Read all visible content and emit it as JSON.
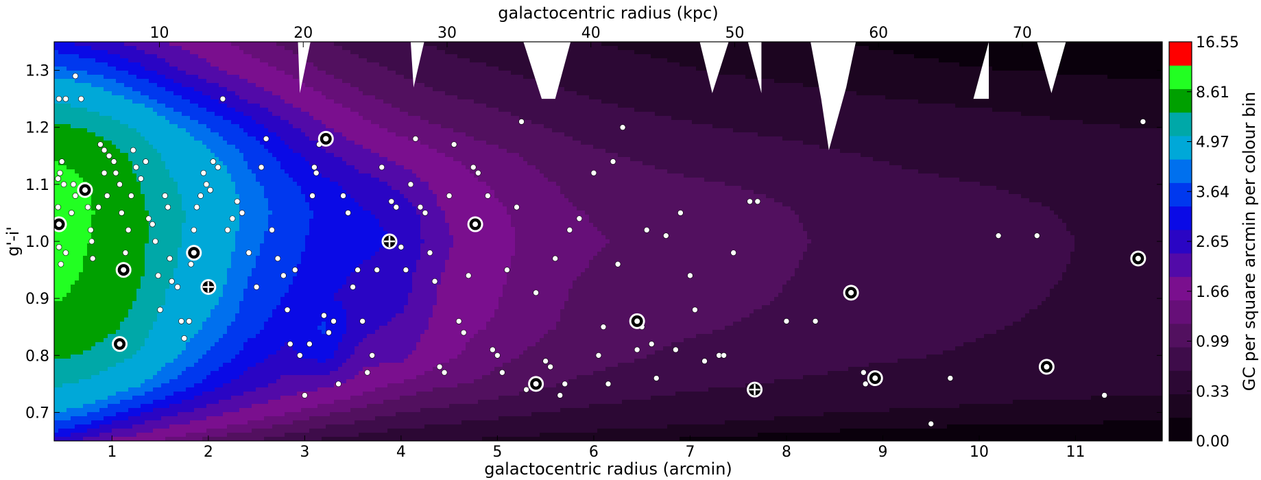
{
  "chart_data": {
    "type": "heatmap",
    "xlabel": "galactocentric radius (arcmin)",
    "x2label": "galactocentric radius (kpc)",
    "ylabel": "g'-i'",
    "colorbar_label": "GC per square arcmin per colour bin",
    "xlim": [
      0.4,
      11.9
    ],
    "ylim": [
      0.65,
      1.35
    ],
    "x_ticks": [
      "1",
      "2",
      "3",
      "4",
      "5",
      "6",
      "7",
      "8",
      "9",
      "10",
      "11"
    ],
    "x2_ticks": [
      "10",
      "20",
      "30",
      "40",
      "50",
      "60",
      "70"
    ],
    "y_ticks": [
      "0.7",
      "0.8",
      "0.9",
      "1.0",
      "1.1",
      "1.2",
      "1.3"
    ],
    "colorbar_ticks": [
      "0.00",
      "0.33",
      "0.99",
      "1.66",
      "2.65",
      "3.64",
      "4.97",
      "8.61",
      "16.55"
    ],
    "levels": [
      0,
      0.17,
      0.33,
      0.66,
      0.99,
      1.33,
      1.66,
      2.16,
      2.65,
      3.15,
      3.64,
      4.31,
      4.97,
      6.79,
      8.61,
      12.58,
      16.55
    ],
    "level_colors": [
      "#0a000c",
      "#1c0520",
      "#2c0834",
      "#3e0c4a",
      "#52105f",
      "#660f78",
      "#7a0f8e",
      "#520aa8",
      "#2a05c4",
      "#0a0ae6",
      "#0038ee",
      "#0070ee",
      "#00a8d8",
      "#00a8a8",
      "#00a000",
      "#22ff22",
      "#ff0000"
    ],
    "density_grid": {
      "x": [
        0.4,
        0.7,
        1.0,
        1.3,
        1.6,
        2.0,
        2.4,
        2.8,
        3.2,
        3.6,
        4.0,
        4.4,
        4.8,
        5.3,
        5.8,
        6.3,
        6.8,
        7.3,
        7.8,
        8.3,
        8.8,
        9.3,
        9.8,
        10.3,
        10.8,
        11.3,
        11.9
      ],
      "y": [
        0.65,
        0.7,
        0.75,
        0.8,
        0.85,
        0.9,
        0.95,
        1.0,
        1.05,
        1.1,
        1.15,
        1.2,
        1.25,
        1.3,
        1.35
      ],
      "z": [
        [
          3,
          2.5,
          2,
          1.8,
          1.5,
          1.2,
          1,
          0.8,
          0.6,
          0.5,
          0.4,
          0.35,
          0.3,
          0.25,
          0.2,
          0.18,
          0.15,
          0.12,
          0.1,
          0.08,
          0.07,
          0.06,
          0.05,
          0.05,
          0.04,
          0.04,
          0.03
        ],
        [
          5,
          4.5,
          3.8,
          3.2,
          2.8,
          2.4,
          2,
          1.7,
          1.4,
          1.2,
          1,
          0.9,
          0.8,
          0.7,
          0.6,
          0.55,
          0.5,
          0.45,
          0.4,
          0.35,
          0.33,
          0.3,
          0.28,
          0.26,
          0.25,
          0.24,
          0.22
        ],
        [
          7,
          6.5,
          5.8,
          5,
          4.2,
          3.4,
          2.9,
          2.5,
          2.3,
          1.9,
          1.6,
          1.4,
          1.3,
          1.1,
          0.95,
          0.85,
          0.75,
          0.7,
          0.65,
          0.6,
          0.55,
          0.5,
          0.5,
          0.45,
          0.45,
          0.4,
          0.4
        ],
        [
          9,
          8.5,
          7.5,
          6.5,
          5.2,
          4.2,
          3.4,
          3,
          3.4,
          2.4,
          2.3,
          1.8,
          1.5,
          1.3,
          1.15,
          1.05,
          0.95,
          0.9,
          0.85,
          0.8,
          0.72,
          0.68,
          0.64,
          0.6,
          0.58,
          0.55,
          0.5
        ],
        [
          11,
          10,
          9,
          7.5,
          5.8,
          4.8,
          3.9,
          3.3,
          3.7,
          2.8,
          2.5,
          2,
          1.7,
          1.45,
          1.25,
          1.15,
          1.05,
          1,
          0.95,
          0.88,
          0.8,
          0.75,
          0.7,
          0.66,
          0.62,
          0.58,
          0.55
        ],
        [
          13,
          11.5,
          10,
          8.3,
          6.5,
          5.3,
          4.2,
          3.6,
          3.2,
          3,
          2.8,
          2.1,
          1.8,
          1.5,
          1.3,
          1.2,
          1.1,
          1.05,
          1,
          0.92,
          0.85,
          0.8,
          0.74,
          0.7,
          0.65,
          0.6,
          0.56
        ],
        [
          14.5,
          12.5,
          10.5,
          8.8,
          7,
          5.6,
          4.4,
          3.8,
          3.3,
          3.1,
          2.9,
          2.2,
          1.85,
          1.55,
          1.35,
          1.25,
          1.15,
          1.1,
          1.05,
          0.95,
          0.88,
          0.82,
          0.76,
          0.72,
          0.67,
          0.62,
          0.58
        ],
        [
          15.5,
          13,
          11,
          9,
          7.2,
          5.8,
          4.6,
          3.9,
          3.4,
          3.3,
          3.1,
          2.3,
          1.9,
          1.6,
          1.4,
          1.3,
          1.2,
          1.15,
          1.08,
          0.98,
          0.9,
          0.84,
          0.78,
          0.74,
          0.68,
          0.63,
          0.6
        ],
        [
          16,
          13.5,
          11,
          9,
          7.3,
          6,
          4.8,
          4,
          3.5,
          3.2,
          3,
          2.2,
          1.85,
          1.55,
          1.35,
          1.25,
          1.15,
          1.1,
          1.05,
          0.95,
          0.88,
          0.82,
          0.76,
          0.72,
          0.66,
          0.62,
          0.58
        ],
        [
          15,
          13,
          10.5,
          8.5,
          7,
          5.8,
          4.6,
          3.8,
          3.3,
          2.9,
          2.5,
          2,
          1.7,
          1.45,
          1.25,
          1.15,
          1.05,
          1,
          0.95,
          0.85,
          0.78,
          0.72,
          0.68,
          0.64,
          0.6,
          0.56,
          0.52
        ],
        [
          12,
          11,
          9.5,
          7.8,
          6.3,
          5.2,
          4.2,
          3.4,
          2.8,
          2.3,
          2,
          1.7,
          1.5,
          1.3,
          1.1,
          0.98,
          0.9,
          0.85,
          0.8,
          0.72,
          0.66,
          0.6,
          0.56,
          0.52,
          0.48,
          0.45,
          0.42
        ],
        [
          9,
          8.5,
          7.5,
          6.5,
          5.2,
          4.3,
          3.5,
          2.8,
          2.2,
          1.8,
          1.5,
          1.35,
          1.2,
          1.05,
          0.9,
          0.8,
          0.72,
          0.66,
          0.6,
          0.55,
          0.5,
          0.46,
          0.42,
          0.39,
          0.36,
          0.34,
          0.32
        ],
        [
          6.5,
          6,
          5.3,
          4.6,
          3.9,
          3.2,
          2.6,
          2.1,
          1.7,
          1.4,
          1.2,
          1.05,
          0.95,
          0.82,
          0.7,
          0.6,
          0.54,
          0.48,
          0.43,
          0.39,
          0.35,
          0.32,
          0.3,
          0.28,
          0.26,
          0.24,
          0.22
        ],
        [
          4.5,
          4.2,
          3.8,
          3.3,
          2.8,
          2.3,
          1.9,
          1.6,
          1.3,
          1.1,
          0.95,
          0.82,
          0.72,
          0.6,
          0.5,
          0.42,
          0.36,
          0.31,
          0.28,
          0.25,
          0.22,
          0.2,
          0.18,
          0.17,
          0.16,
          0.15,
          0.14
        ],
        [
          3.2,
          3,
          2.7,
          2.4,
          2.1,
          1.8,
          1.5,
          1.25,
          1,
          0.85,
          0.72,
          0.6,
          0.5,
          0.42,
          0.35,
          0.3,
          0.26,
          0.22,
          0.2,
          0.18,
          0.16,
          0.14,
          0.13,
          0.12,
          0.11,
          0.1,
          0.1
        ]
      ]
    },
    "gc_points": [
      [
        0.45,
        1.25
      ],
      [
        0.52,
        1.25
      ],
      [
        0.62,
        1.29
      ],
      [
        0.68,
        1.25
      ],
      [
        0.48,
        1.14
      ],
      [
        0.46,
        1.12
      ],
      [
        0.44,
        1.11
      ],
      [
        0.5,
        1.1
      ],
      [
        0.44,
        1.06
      ],
      [
        0.5,
        1.03
      ],
      [
        0.47,
        0.96
      ],
      [
        0.45,
        0.99
      ],
      [
        0.52,
        0.98
      ],
      [
        0.58,
        1.05
      ],
      [
        0.6,
        1.1
      ],
      [
        0.62,
        1.08
      ],
      [
        0.72,
        1.09
      ],
      [
        0.75,
        1.06
      ],
      [
        0.79,
        1.0
      ],
      [
        0.78,
        1.02
      ],
      [
        0.8,
        0.97
      ],
      [
        0.86,
        1.06
      ],
      [
        0.88,
        1.17
      ],
      [
        0.92,
        1.16
      ],
      [
        0.92,
        1.12
      ],
      [
        0.95,
        1.08
      ],
      [
        0.97,
        1.15
      ],
      [
        1.02,
        1.14
      ],
      [
        1.04,
        1.12
      ],
      [
        1.08,
        1.1
      ],
      [
        1.1,
        1.05
      ],
      [
        1.14,
        0.98
      ],
      [
        1.17,
        1.02
      ],
      [
        1.2,
        1.08
      ],
      [
        1.22,
        1.16
      ],
      [
        1.25,
        1.13
      ],
      [
        1.3,
        1.11
      ],
      [
        1.35,
        1.14
      ],
      [
        1.38,
        1.04
      ],
      [
        1.42,
        1.03
      ],
      [
        1.45,
        1.0
      ],
      [
        1.48,
        0.94
      ],
      [
        1.5,
        0.88
      ],
      [
        1.55,
        1.08
      ],
      [
        1.58,
        1.06
      ],
      [
        1.6,
        0.97
      ],
      [
        1.62,
        0.93
      ],
      [
        1.68,
        0.92
      ],
      [
        1.72,
        0.86
      ],
      [
        1.75,
        0.83
      ],
      [
        1.8,
        0.86
      ],
      [
        1.82,
        0.96
      ],
      [
        1.85,
        1.02
      ],
      [
        1.88,
        1.06
      ],
      [
        1.92,
        1.08
      ],
      [
        1.95,
        1.12
      ],
      [
        1.98,
        1.1
      ],
      [
        2.02,
        1.09
      ],
      [
        2.05,
        1.14
      ],
      [
        2.1,
        1.13
      ],
      [
        2.15,
        1.25
      ],
      [
        2.2,
        1.02
      ],
      [
        2.25,
        1.04
      ],
      [
        2.3,
        1.07
      ],
      [
        2.35,
        1.05
      ],
      [
        2.42,
        0.98
      ],
      [
        2.5,
        0.92
      ],
      [
        2.55,
        1.13
      ],
      [
        2.6,
        1.18
      ],
      [
        2.66,
        1.02
      ],
      [
        2.72,
        0.97
      ],
      [
        2.78,
        0.94
      ],
      [
        2.82,
        0.88
      ],
      [
        2.85,
        0.82
      ],
      [
        2.9,
        0.95
      ],
      [
        2.95,
        0.8
      ],
      [
        3.0,
        0.73
      ],
      [
        3.05,
        0.82
      ],
      [
        3.08,
        1.08
      ],
      [
        3.1,
        1.13
      ],
      [
        3.12,
        1.12
      ],
      [
        3.15,
        1.17
      ],
      [
        3.2,
        0.87
      ],
      [
        3.25,
        0.84
      ],
      [
        3.3,
        0.86
      ],
      [
        3.35,
        0.75
      ],
      [
        3.4,
        1.08
      ],
      [
        3.45,
        1.05
      ],
      [
        3.5,
        0.92
      ],
      [
        3.55,
        0.95
      ],
      [
        3.6,
        0.86
      ],
      [
        3.65,
        0.77
      ],
      [
        3.7,
        0.8
      ],
      [
        3.75,
        0.95
      ],
      [
        3.8,
        1.13
      ],
      [
        3.9,
        1.07
      ],
      [
        3.95,
        1.06
      ],
      [
        4.0,
        0.99
      ],
      [
        4.05,
        0.95
      ],
      [
        4.1,
        1.1
      ],
      [
        4.15,
        1.18
      ],
      [
        4.2,
        1.06
      ],
      [
        4.25,
        1.05
      ],
      [
        4.3,
        0.98
      ],
      [
        4.35,
        0.93
      ],
      [
        4.4,
        0.78
      ],
      [
        4.45,
        0.77
      ],
      [
        4.5,
        1.08
      ],
      [
        4.55,
        1.17
      ],
      [
        4.6,
        0.86
      ],
      [
        4.65,
        0.84
      ],
      [
        4.7,
        0.94
      ],
      [
        4.75,
        1.13
      ],
      [
        4.8,
        1.12
      ],
      [
        4.9,
        1.08
      ],
      [
        4.95,
        0.81
      ],
      [
        5.0,
        0.8
      ],
      [
        5.05,
        0.77
      ],
      [
        5.1,
        0.95
      ],
      [
        5.2,
        1.06
      ],
      [
        5.25,
        1.21
      ],
      [
        5.3,
        0.74
      ],
      [
        5.4,
        0.91
      ],
      [
        5.45,
        0.75
      ],
      [
        5.5,
        0.79
      ],
      [
        5.55,
        0.78
      ],
      [
        5.6,
        0.97
      ],
      [
        5.65,
        0.73
      ],
      [
        5.7,
        0.75
      ],
      [
        5.75,
        1.02
      ],
      [
        5.85,
        1.04
      ],
      [
        6.0,
        1.12
      ],
      [
        6.05,
        0.8
      ],
      [
        6.1,
        0.85
      ],
      [
        6.15,
        0.75
      ],
      [
        6.2,
        1.14
      ],
      [
        6.25,
        0.96
      ],
      [
        6.3,
        1.2
      ],
      [
        6.45,
        0.81
      ],
      [
        6.5,
        0.85
      ],
      [
        6.55,
        1.02
      ],
      [
        6.6,
        0.82
      ],
      [
        6.65,
        0.76
      ],
      [
        6.75,
        1.01
      ],
      [
        6.85,
        0.81
      ],
      [
        6.9,
        1.05
      ],
      [
        7.0,
        0.94
      ],
      [
        7.05,
        0.88
      ],
      [
        7.15,
        0.79
      ],
      [
        7.3,
        0.8
      ],
      [
        7.35,
        0.8
      ],
      [
        7.45,
        0.98
      ],
      [
        7.62,
        1.07
      ],
      [
        7.7,
        1.07
      ],
      [
        8.0,
        0.86
      ],
      [
        8.3,
        0.86
      ],
      [
        8.8,
        0.77
      ],
      [
        8.82,
        0.75
      ],
      [
        9.5,
        0.68
      ],
      [
        9.7,
        0.76
      ],
      [
        10.2,
        1.01
      ],
      [
        10.6,
        1.01
      ],
      [
        10.75,
        0.78
      ],
      [
        11.3,
        0.73
      ],
      [
        11.7,
        1.21
      ]
    ],
    "gc_circled": [
      [
        0.45,
        1.03
      ],
      [
        0.72,
        1.09
      ],
      [
        1.12,
        0.95
      ],
      [
        1.08,
        0.82
      ],
      [
        1.85,
        0.98
      ],
      [
        3.22,
        1.18
      ],
      [
        4.77,
        1.03
      ],
      [
        5.4,
        0.75
      ],
      [
        6.45,
        0.86
      ],
      [
        8.67,
        0.91
      ],
      [
        8.92,
        0.76
      ],
      [
        10.7,
        0.78
      ],
      [
        11.65,
        0.97
      ]
    ],
    "gc_crossed": [
      [
        2.0,
        0.92
      ],
      [
        3.88,
        1.0
      ],
      [
        7.67,
        0.74
      ]
    ],
    "masked_regions": [
      [
        [
          2.93,
          1.35
        ],
        [
          3.06,
          1.35
        ],
        [
          2.95,
          1.26
        ]
      ],
      [
        [
          4.1,
          1.35
        ],
        [
          4.24,
          1.35
        ],
        [
          4.13,
          1.27
        ]
      ],
      [
        [
          5.27,
          1.35
        ],
        [
          5.76,
          1.35
        ],
        [
          5.6,
          1.25
        ],
        [
          5.46,
          1.25
        ]
      ],
      [
        [
          7.1,
          1.35
        ],
        [
          7.4,
          1.35
        ],
        [
          7.23,
          1.26
        ]
      ],
      [
        [
          7.6,
          1.35
        ],
        [
          7.74,
          1.35
        ],
        [
          7.74,
          1.26
        ]
      ],
      [
        [
          8.25,
          1.35
        ],
        [
          8.72,
          1.35
        ],
        [
          8.62,
          1.27
        ],
        [
          8.44,
          1.16
        ],
        [
          8.36,
          1.25
        ]
      ],
      [
        [
          10.1,
          1.35
        ],
        [
          10.1,
          1.25
        ],
        [
          9.94,
          1.25
        ]
      ],
      [
        [
          10.6,
          1.35
        ],
        [
          10.9,
          1.35
        ],
        [
          10.75,
          1.26
        ]
      ]
    ]
  }
}
